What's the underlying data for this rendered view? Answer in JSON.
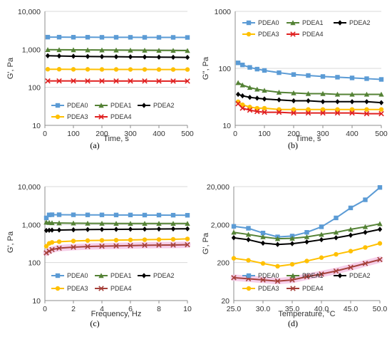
{
  "colors": {
    "PDEA0": "#5b9bd5",
    "PDEA1": "#548235",
    "PDEA2": "#000000",
    "PDEA3": "#ffc000",
    "PDEA4": "#e02020",
    "PDEA4_d": "#a5403a",
    "highlight": "#f4c2e4",
    "grid": "#d9d9d9"
  },
  "chart_data": [
    {
      "type": "line",
      "panel_label": "(a)",
      "xlabel": "Time, s",
      "ylabel": "G', Pa",
      "yscale": "log",
      "xlim": [
        0,
        500
      ],
      "ylim": [
        10,
        10000
      ],
      "xticks": [
        "0",
        "100",
        "200",
        "300",
        "400",
        "500"
      ],
      "yticks": [
        "10",
        "100",
        "1,000",
        "10,000"
      ],
      "legend": "bottom",
      "x": [
        10,
        50,
        100,
        150,
        200,
        250,
        300,
        350,
        400,
        450,
        500
      ],
      "series": [
        {
          "name": "PDEA0",
          "marker": "square",
          "values": [
            2100,
            2100,
            2090,
            2090,
            2080,
            2080,
            2080,
            2070,
            2070,
            2070,
            2060
          ]
        },
        {
          "name": "PDEA1",
          "marker": "triangle",
          "values": [
            980,
            975,
            970,
            965,
            960,
            955,
            950,
            945,
            940,
            935,
            930
          ]
        },
        {
          "name": "PDEA2",
          "marker": "diamond",
          "values": [
            680,
            670,
            660,
            650,
            645,
            640,
            635,
            630,
            625,
            620,
            615
          ]
        },
        {
          "name": "PDEA3",
          "marker": "circle",
          "values": [
            300,
            300,
            298,
            298,
            297,
            297,
            296,
            296,
            295,
            295,
            295
          ]
        },
        {
          "name": "PDEA4",
          "marker": "x",
          "values": [
            148,
            148,
            148,
            147,
            147,
            147,
            147,
            147,
            146,
            146,
            146
          ]
        }
      ]
    },
    {
      "type": "line",
      "panel_label": "(b)",
      "xlabel": "Time, s",
      "ylabel": "G'', Pa",
      "yscale": "log",
      "xlim": [
        0,
        500
      ],
      "ylim": [
        10,
        1000
      ],
      "xticks": [
        "0",
        "100",
        "200",
        "300",
        "400",
        "500"
      ],
      "yticks": [
        "10",
        "100",
        "1000"
      ],
      "legend": "top",
      "x": [
        10,
        25,
        50,
        75,
        100,
        150,
        200,
        250,
        300,
        350,
        400,
        450,
        500
      ],
      "series": [
        {
          "name": "PDEA0",
          "marker": "square",
          "values": [
            125,
            115,
            104,
            97,
            92,
            84,
            78,
            75,
            72,
            70,
            68,
            66,
            64
          ]
        },
        {
          "name": "PDEA1",
          "marker": "triangle",
          "values": [
            56,
            51,
            46,
            43,
            41,
            38,
            37,
            36,
            36,
            35,
            35,
            35,
            35
          ]
        },
        {
          "name": "PDEA2",
          "marker": "diamond",
          "values": [
            35,
            33,
            31,
            30,
            29,
            28,
            27,
            27,
            26,
            26,
            26,
            26,
            25
          ]
        },
        {
          "name": "PDEA3",
          "marker": "circle",
          "values": [
            26,
            23,
            21,
            20,
            20,
            19,
            19,
            19,
            19,
            19,
            19,
            19,
            19
          ]
        },
        {
          "name": "PDEA4",
          "marker": "x",
          "values": [
            24,
            20,
            18.5,
            17.5,
            17,
            17,
            16.5,
            16.5,
            16.5,
            16.5,
            16.5,
            16,
            16
          ]
        }
      ]
    },
    {
      "type": "line",
      "panel_label": "(c)",
      "xlabel": "Frequency, Hz",
      "ylabel": "G', Pa",
      "yscale": "log",
      "xlim": [
        0,
        10
      ],
      "ylim": [
        10,
        10000
      ],
      "xticks": [
        "0",
        "2",
        "4",
        "6",
        "8",
        "10"
      ],
      "yticks": [
        "10",
        "100",
        "1,000",
        "10,000"
      ],
      "legend": "bottom",
      "x": [
        0.1,
        0.3,
        0.5,
        1,
        2,
        3,
        4,
        5,
        6,
        7,
        8,
        9,
        10
      ],
      "series": [
        {
          "name": "PDEA0",
          "marker": "square",
          "values": [
            1500,
            1800,
            1820,
            1820,
            1810,
            1800,
            1800,
            1790,
            1790,
            1780,
            1780,
            1770,
            1760
          ]
        },
        {
          "name": "PDEA1",
          "marker": "triangle",
          "values": [
            1150,
            1130,
            1110,
            1100,
            1090,
            1080,
            1075,
            1070,
            1070,
            1070,
            1070,
            1070,
            1070
          ]
        },
        {
          "name": "PDEA2",
          "marker": "diamond",
          "values": [
            700,
            710,
            715,
            720,
            730,
            740,
            745,
            750,
            755,
            760,
            765,
            770,
            775
          ]
        },
        {
          "name": "PDEA3",
          "marker": "circle",
          "values": [
            270,
            320,
            340,
            355,
            370,
            380,
            385,
            390,
            395,
            400,
            405,
            410,
            420
          ]
        },
        {
          "name": "PDEA4",
          "marker": "x",
          "values": [
            180,
            200,
            220,
            240,
            255,
            265,
            270,
            275,
            280,
            285,
            288,
            290,
            295
          ]
        }
      ]
    },
    {
      "type": "line",
      "panel_label": "(d)",
      "xlabel": "Temperature, °C",
      "ylabel": "G', Pa",
      "yscale": "log",
      "xlim": [
        25,
        50
      ],
      "ylim": [
        20,
        20000
      ],
      "xticks": [
        "25.0",
        "30.0",
        "35.0",
        "40.0",
        "45.0",
        "50.0"
      ],
      "yticks": [
        "20",
        "200",
        "2,000",
        "20,000"
      ],
      "legend": "bottom",
      "x": [
        25,
        27.5,
        30,
        32.5,
        35,
        37.5,
        40,
        42.5,
        45,
        47.5,
        50
      ],
      "series": [
        {
          "name": "PDEA0",
          "marker": "square",
          "values": [
            1800,
            1600,
            1200,
            950,
            1000,
            1250,
            1750,
            3000,
            5500,
            9000,
            19000
          ]
        },
        {
          "name": "PDEA1",
          "marker": "triangle",
          "values": [
            1250,
            1100,
            950,
            850,
            870,
            950,
            1100,
            1250,
            1500,
            1750,
            2100
          ]
        },
        {
          "name": "PDEA2",
          "marker": "diamond",
          "values": [
            900,
            800,
            650,
            600,
            630,
            700,
            800,
            900,
            1050,
            1250,
            1500
          ]
        },
        {
          "name": "PDEA3",
          "marker": "circle",
          "values": [
            260,
            230,
            190,
            160,
            180,
            220,
            270,
            330,
            400,
            500,
            640
          ]
        },
        {
          "name": "PDEA4",
          "marker": "x",
          "values": [
            80,
            75,
            70,
            65,
            70,
            85,
            100,
            120,
            150,
            190,
            240
          ]
        }
      ]
    }
  ]
}
